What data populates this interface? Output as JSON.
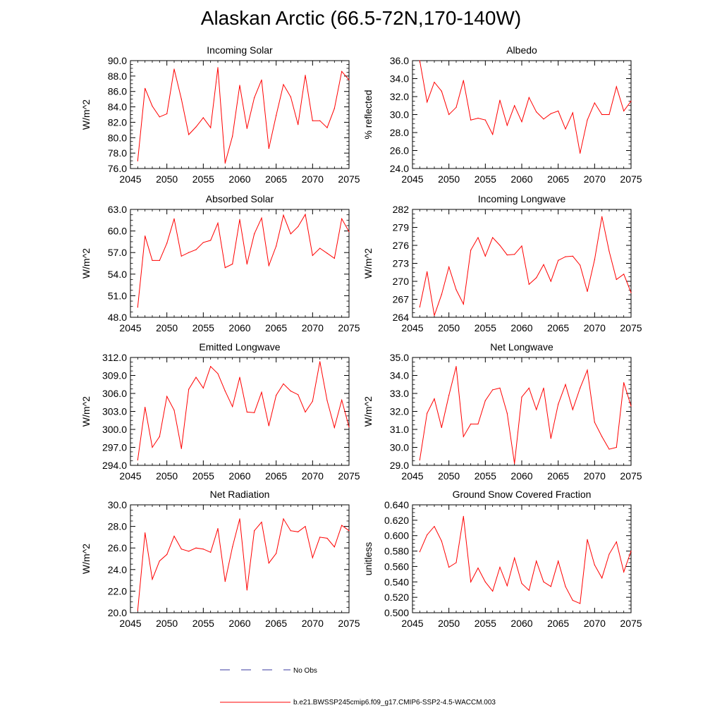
{
  "figure_title": "Alaskan Arctic (66.5-72N,170-140W)",
  "legend": {
    "entries": [
      {
        "label": "No Obs",
        "color": "#3a3aa0",
        "style": "dashed"
      },
      {
        "label": "b.e21.BWSSP245cmip6.f09_g17.CMIP6-SSP2-4.5-WACCM.003",
        "color": "#ff0000",
        "style": "solid"
      }
    ]
  },
  "chart_data": [
    {
      "type": "line",
      "title": "Incoming Solar",
      "xlabel": "",
      "ylabel": "W/m^2",
      "xlim": [
        2045,
        2075
      ],
      "ylim": [
        76,
        90
      ],
      "xticks": [
        2045,
        2050,
        2055,
        2060,
        2065,
        2070,
        2075
      ],
      "ytick_labels": [
        "76.0",
        "78.0",
        "80.0",
        "82.0",
        "84.0",
        "86.0",
        "88.0",
        "90.0"
      ],
      "ytick_values": [
        76,
        78,
        80,
        82,
        84,
        86,
        88,
        90
      ],
      "color": "#ff0000",
      "x": [
        2046,
        2047,
        2048,
        2049,
        2050,
        2051,
        2052,
        2053,
        2054,
        2055,
        2056,
        2057,
        2058,
        2059,
        2060,
        2061,
        2062,
        2063,
        2064,
        2065,
        2066,
        2067,
        2068,
        2069,
        2070,
        2071,
        2072,
        2073,
        2074,
        2075
      ],
      "y": [
        77.0,
        86.4,
        84.1,
        82.7,
        83.1,
        88.9,
        85.0,
        80.4,
        81.4,
        82.6,
        81.3,
        89.1,
        76.7,
        80.2,
        86.8,
        81.2,
        85.2,
        87.5,
        78.6,
        82.9,
        86.9,
        85.3,
        81.7,
        88.1,
        82.2,
        82.2,
        81.3,
        83.8,
        88.6,
        87.5
      ]
    },
    {
      "type": "line",
      "title": "Albedo",
      "xlabel": "",
      "ylabel": "% reflected",
      "xlim": [
        2045,
        2075
      ],
      "ylim": [
        24,
        36
      ],
      "xticks": [
        2045,
        2050,
        2055,
        2060,
        2065,
        2070,
        2075
      ],
      "ytick_labels": [
        "24.0",
        "26.0",
        "28.0",
        "30.0",
        "32.0",
        "34.0",
        "36.0"
      ],
      "ytick_values": [
        24,
        26,
        28,
        30,
        32,
        34,
        36
      ],
      "color": "#ff0000",
      "x": [
        2046,
        2047,
        2048,
        2049,
        2050,
        2051,
        2052,
        2053,
        2054,
        2055,
        2056,
        2057,
        2058,
        2059,
        2060,
        2061,
        2062,
        2063,
        2064,
        2065,
        2066,
        2067,
        2068,
        2069,
        2070,
        2071,
        2072,
        2073,
        2074,
        2075
      ],
      "y": [
        36.0,
        31.4,
        33.6,
        32.6,
        30.0,
        30.8,
        33.8,
        29.4,
        29.6,
        29.4,
        27.8,
        31.6,
        28.8,
        31.0,
        29.2,
        31.9,
        30.3,
        29.5,
        30.1,
        30.4,
        28.4,
        30.2,
        25.7,
        29.4,
        31.3,
        30.0,
        30.0,
        33.1,
        30.4,
        31.5
      ]
    },
    {
      "type": "line",
      "title": "Absorbed Solar",
      "xlabel": "",
      "ylabel": "W/m^2",
      "xlim": [
        2045,
        2075
      ],
      "ylim": [
        48,
        63
      ],
      "xticks": [
        2045,
        2050,
        2055,
        2060,
        2065,
        2070,
        2075
      ],
      "ytick_labels": [
        "48.0",
        "51.0",
        "54.0",
        "57.0",
        "60.0",
        "63.0"
      ],
      "ytick_values": [
        48,
        51,
        54,
        57,
        60,
        63
      ],
      "color": "#ff0000",
      "x": [
        2046,
        2047,
        2048,
        2049,
        2050,
        2051,
        2052,
        2053,
        2054,
        2055,
        2056,
        2057,
        2058,
        2059,
        2060,
        2061,
        2062,
        2063,
        2064,
        2065,
        2066,
        2067,
        2068,
        2069,
        2070,
        2071,
        2072,
        2073,
        2074,
        2075
      ],
      "y": [
        49.4,
        59.3,
        55.9,
        55.9,
        58.3,
        61.7,
        56.5,
        57.0,
        57.4,
        58.4,
        58.7,
        61.1,
        54.9,
        55.4,
        61.6,
        55.4,
        59.6,
        61.8,
        55.2,
        57.9,
        62.2,
        59.6,
        60.6,
        62.3,
        56.6,
        57.6,
        56.9,
        56.2,
        61.7,
        59.9
      ]
    },
    {
      "type": "line",
      "title": "Incoming Longwave",
      "xlabel": "",
      "ylabel": "W/m^2",
      "xlim": [
        2045,
        2075
      ],
      "ylim": [
        264,
        282
      ],
      "xticks": [
        2045,
        2050,
        2055,
        2060,
        2065,
        2070,
        2075
      ],
      "ytick_labels": [
        "264",
        "267",
        "270",
        "273",
        "276",
        "279",
        "282"
      ],
      "ytick_values": [
        264,
        267,
        270,
        273,
        276,
        279,
        282
      ],
      "color": "#ff0000",
      "x": [
        2046,
        2047,
        2048,
        2049,
        2050,
        2051,
        2052,
        2053,
        2054,
        2055,
        2056,
        2057,
        2058,
        2059,
        2060,
        2061,
        2062,
        2063,
        2064,
        2065,
        2066,
        2067,
        2068,
        2069,
        2070,
        2071,
        2072,
        2073,
        2074,
        2075
      ],
      "y": [
        265.7,
        271.6,
        264.3,
        267.8,
        272.4,
        268.6,
        266.2,
        275.2,
        277.3,
        274.2,
        277.3,
        276.0,
        274.4,
        274.5,
        275.9,
        269.5,
        270.6,
        272.8,
        270.0,
        273.5,
        274.1,
        274.2,
        272.7,
        268.3,
        273.6,
        280.8,
        275.0,
        270.3,
        271.2,
        268.1
      ]
    },
    {
      "type": "line",
      "title": "Emitted Longwave",
      "xlabel": "",
      "ylabel": "W/m^2",
      "xlim": [
        2045,
        2075
      ],
      "ylim": [
        294,
        312
      ],
      "xticks": [
        2045,
        2050,
        2055,
        2060,
        2065,
        2070,
        2075
      ],
      "ytick_labels": [
        "294.0",
        "297.0",
        "300.0",
        "303.0",
        "306.0",
        "309.0",
        "312.0"
      ],
      "ytick_values": [
        294,
        297,
        300,
        303,
        306,
        309,
        312
      ],
      "color": "#ff0000",
      "x": [
        2046,
        2047,
        2048,
        2049,
        2050,
        2051,
        2052,
        2053,
        2054,
        2055,
        2056,
        2057,
        2058,
        2059,
        2060,
        2061,
        2062,
        2063,
        2064,
        2065,
        2066,
        2067,
        2068,
        2069,
        2070,
        2071,
        2072,
        2073,
        2074,
        2075
      ],
      "y": [
        294.9,
        303.7,
        297.0,
        298.8,
        305.5,
        303.2,
        296.8,
        306.7,
        308.7,
        306.9,
        310.5,
        309.3,
        306.4,
        303.8,
        308.7,
        302.9,
        302.8,
        306.2,
        300.6,
        305.7,
        307.6,
        306.4,
        305.8,
        302.9,
        304.7,
        311.3,
        304.8,
        300.3,
        304.9,
        300.4
      ]
    },
    {
      "type": "line",
      "title": "Net Longwave",
      "xlabel": "",
      "ylabel": "W/m^2",
      "xlim": [
        2045,
        2075
      ],
      "ylim": [
        29,
        35
      ],
      "xticks": [
        2045,
        2050,
        2055,
        2060,
        2065,
        2070,
        2075
      ],
      "ytick_labels": [
        "29.0",
        "30.0",
        "31.0",
        "32.0",
        "33.0",
        "34.0",
        "35.0"
      ],
      "ytick_values": [
        29,
        30,
        31,
        32,
        33,
        34,
        35
      ],
      "color": "#ff0000",
      "x": [
        2046,
        2047,
        2048,
        2049,
        2050,
        2051,
        2052,
        2053,
        2054,
        2055,
        2056,
        2057,
        2058,
        2059,
        2060,
        2061,
        2062,
        2063,
        2064,
        2065,
        2066,
        2067,
        2068,
        2069,
        2070,
        2071,
        2072,
        2073,
        2074,
        2075
      ],
      "y": [
        29.3,
        31.9,
        32.7,
        31.1,
        32.9,
        34.5,
        30.6,
        31.3,
        31.3,
        32.6,
        33.2,
        33.3,
        31.9,
        29.1,
        32.8,
        33.3,
        32.1,
        33.3,
        30.5,
        32.4,
        33.5,
        32.1,
        33.3,
        34.3,
        31.4,
        30.6,
        29.9,
        30.0,
        33.6,
        32.3
      ]
    },
    {
      "type": "line",
      "title": "Net Radiation",
      "xlabel": "",
      "ylabel": "W/m^2",
      "xlim": [
        2045,
        2075
      ],
      "ylim": [
        20,
        30
      ],
      "xticks": [
        2045,
        2050,
        2055,
        2060,
        2065,
        2070,
        2075
      ],
      "ytick_labels": [
        "20.0",
        "22.0",
        "24.0",
        "26.0",
        "28.0",
        "30.0"
      ],
      "ytick_values": [
        20,
        22,
        24,
        26,
        28,
        30
      ],
      "color": "#ff0000",
      "x": [
        2046,
        2047,
        2048,
        2049,
        2050,
        2051,
        2052,
        2053,
        2054,
        2055,
        2056,
        2057,
        2058,
        2059,
        2060,
        2061,
        2062,
        2063,
        2064,
        2065,
        2066,
        2067,
        2068,
        2069,
        2070,
        2071,
        2072,
        2073,
        2074,
        2075
      ],
      "y": [
        20.2,
        27.4,
        23.1,
        24.8,
        25.4,
        27.1,
        25.9,
        25.7,
        26.0,
        25.9,
        25.6,
        27.8,
        22.9,
        26.1,
        28.7,
        22.1,
        27.6,
        28.4,
        24.6,
        25.5,
        28.7,
        27.6,
        27.5,
        28.0,
        25.1,
        27.0,
        26.9,
        26.1,
        28.1,
        27.6
      ]
    },
    {
      "type": "line",
      "title": "Ground Snow Covered Fraction",
      "xlabel": "",
      "ylabel": "unitless",
      "xlim": [
        2045,
        2075
      ],
      "ylim": [
        0.5,
        0.64
      ],
      "xticks": [
        2045,
        2050,
        2055,
        2060,
        2065,
        2070,
        2075
      ],
      "ytick_labels": [
        "0.500",
        "0.520",
        "0.540",
        "0.560",
        "0.580",
        "0.600",
        "0.620",
        "0.640"
      ],
      "ytick_values": [
        0.5,
        0.52,
        0.54,
        0.56,
        0.58,
        0.6,
        0.62,
        0.64
      ],
      "color": "#ff0000",
      "x": [
        2046,
        2047,
        2048,
        2049,
        2050,
        2051,
        2052,
        2053,
        2054,
        2055,
        2056,
        2057,
        2058,
        2059,
        2060,
        2061,
        2062,
        2063,
        2064,
        2065,
        2066,
        2067,
        2068,
        2069,
        2070,
        2071,
        2072,
        2073,
        2074,
        2075
      ],
      "y": [
        0.579,
        0.601,
        0.612,
        0.593,
        0.559,
        0.565,
        0.625,
        0.54,
        0.558,
        0.54,
        0.528,
        0.559,
        0.535,
        0.571,
        0.538,
        0.529,
        0.567,
        0.54,
        0.534,
        0.567,
        0.534,
        0.516,
        0.512,
        0.595,
        0.562,
        0.545,
        0.576,
        0.592,
        0.553,
        0.58
      ]
    }
  ]
}
